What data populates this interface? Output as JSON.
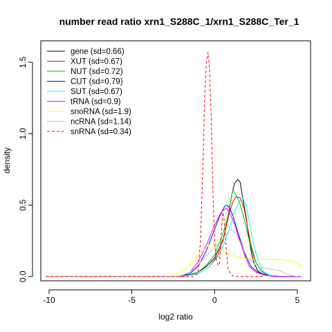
{
  "chart_data": {
    "type": "line",
    "title": "number read ratio xrn1_S288C_1/xrn1_S288C_Ter_1",
    "xlabel": "log2 ratio",
    "ylabel": "density",
    "xlim": [
      -10.5,
      5.8
    ],
    "ylim": [
      -0.03,
      1.65
    ],
    "xticks": [
      -10,
      -5,
      0,
      5
    ],
    "xtick_labels": [
      "-10",
      "-5",
      "0",
      "5"
    ],
    "yticks": [
      0.0,
      0.5,
      1.0,
      1.5
    ],
    "ytick_labels": [
      "0.0",
      "0.5",
      "1.0",
      "1.5"
    ],
    "grid": false,
    "legend_position": "top-left",
    "series": [
      {
        "name": "gene (sd=0.66)",
        "color": "#000000",
        "dash": "solid",
        "points": [
          [
            -10.2,
            0
          ],
          [
            -2.2,
            0
          ],
          [
            -1.5,
            0.01
          ],
          [
            -1.0,
            0.03
          ],
          [
            -0.5,
            0.07
          ],
          [
            0.0,
            0.13
          ],
          [
            0.5,
            0.25
          ],
          [
            0.8,
            0.4
          ],
          [
            1.0,
            0.55
          ],
          [
            1.2,
            0.65
          ],
          [
            1.4,
            0.68
          ],
          [
            1.55,
            0.66
          ],
          [
            1.7,
            0.55
          ],
          [
            1.9,
            0.42
          ],
          [
            2.1,
            0.25
          ],
          [
            2.3,
            0.12
          ],
          [
            2.6,
            0.04
          ],
          [
            3.0,
            0.01
          ],
          [
            3.6,
            0
          ],
          [
            5.2,
            0
          ]
        ]
      },
      {
        "name": "XUT (sd=0.67)",
        "color": "#ff0000",
        "dash": "solid",
        "points": [
          [
            -10.2,
            0
          ],
          [
            -2.0,
            0
          ],
          [
            -1.0,
            0.02
          ],
          [
            -0.3,
            0.07
          ],
          [
            0.2,
            0.15
          ],
          [
            0.6,
            0.3
          ],
          [
            0.9,
            0.45
          ],
          [
            1.1,
            0.52
          ],
          [
            1.3,
            0.56
          ],
          [
            1.55,
            0.55
          ],
          [
            1.8,
            0.47
          ],
          [
            2.0,
            0.34
          ],
          [
            2.2,
            0.22
          ],
          [
            2.5,
            0.1
          ],
          [
            2.8,
            0.04
          ],
          [
            3.2,
            0.01
          ],
          [
            3.8,
            0
          ],
          [
            5.2,
            0
          ]
        ]
      },
      {
        "name": "NUT (sd=0.72)",
        "color": "#00c000",
        "dash": "solid",
        "points": [
          [
            -10.2,
            0
          ],
          [
            -2.0,
            0
          ],
          [
            -1.0,
            0.03
          ],
          [
            -0.5,
            0.08
          ],
          [
            0.0,
            0.15
          ],
          [
            0.5,
            0.3
          ],
          [
            0.8,
            0.42
          ],
          [
            1.0,
            0.55
          ],
          [
            1.1,
            0.6
          ],
          [
            1.25,
            0.58
          ],
          [
            1.5,
            0.52
          ],
          [
            1.8,
            0.4
          ],
          [
            2.1,
            0.25
          ],
          [
            2.4,
            0.12
          ],
          [
            2.8,
            0.04
          ],
          [
            3.2,
            0.01
          ],
          [
            3.8,
            0
          ],
          [
            5.2,
            0
          ]
        ]
      },
      {
        "name": "CUT (sd=0.79)",
        "color": "#0000ff",
        "dash": "solid",
        "points": [
          [
            -10.2,
            0
          ],
          [
            -2.0,
            0
          ],
          [
            -1.5,
            0.02
          ],
          [
            -1.0,
            0.07
          ],
          [
            -0.5,
            0.18
          ],
          [
            0.0,
            0.33
          ],
          [
            0.3,
            0.42
          ],
          [
            0.6,
            0.49
          ],
          [
            0.75,
            0.5
          ],
          [
            0.9,
            0.48
          ],
          [
            1.1,
            0.43
          ],
          [
            1.3,
            0.35
          ],
          [
            1.6,
            0.24
          ],
          [
            1.9,
            0.14
          ],
          [
            2.2,
            0.07
          ],
          [
            2.6,
            0.03
          ],
          [
            3.2,
            0.01
          ],
          [
            4.0,
            0
          ],
          [
            5.2,
            0
          ]
        ]
      },
      {
        "name": "SUT (sd=0.67)",
        "color": "#00ffff",
        "dash": "solid",
        "points": [
          [
            -10.2,
            0
          ],
          [
            -2.0,
            0
          ],
          [
            -1.0,
            0.02
          ],
          [
            -0.3,
            0.07
          ],
          [
            0.3,
            0.15
          ],
          [
            0.8,
            0.3
          ],
          [
            1.2,
            0.45
          ],
          [
            1.5,
            0.53
          ],
          [
            1.7,
            0.55
          ],
          [
            1.9,
            0.5
          ],
          [
            2.1,
            0.38
          ],
          [
            2.3,
            0.25
          ],
          [
            2.6,
            0.12
          ],
          [
            2.9,
            0.04
          ],
          [
            3.3,
            0.01
          ],
          [
            3.8,
            0
          ],
          [
            5.2,
            0
          ]
        ]
      },
      {
        "name": "tRNA (sd=0.9)",
        "color": "#ff00ff",
        "dash": "solid",
        "points": [
          [
            -10.2,
            0
          ],
          [
            -2.0,
            0
          ],
          [
            -1.5,
            0.03
          ],
          [
            -1.0,
            0.1
          ],
          [
            -0.5,
            0.22
          ],
          [
            0.0,
            0.36
          ],
          [
            0.4,
            0.45
          ],
          [
            0.7,
            0.48
          ],
          [
            0.9,
            0.45
          ],
          [
            1.2,
            0.37
          ],
          [
            1.5,
            0.26
          ],
          [
            1.8,
            0.15
          ],
          [
            2.1,
            0.07
          ],
          [
            2.5,
            0.03
          ],
          [
            3.0,
            0.01
          ],
          [
            3.6,
            0
          ],
          [
            5.2,
            0
          ]
        ]
      },
      {
        "name": "snoRNA (sd=1.9)",
        "color": "#ffff00",
        "dash": "solid",
        "points": [
          [
            -10.2,
            0
          ],
          [
            -2.8,
            0
          ],
          [
            -2.0,
            0.03
          ],
          [
            -1.5,
            0.08
          ],
          [
            -1.0,
            0.15
          ],
          [
            -0.5,
            0.2
          ],
          [
            -0.2,
            0.24
          ],
          [
            0.1,
            0.21
          ],
          [
            0.6,
            0.17
          ],
          [
            1.0,
            0.15
          ],
          [
            1.6,
            0.13
          ],
          [
            2.2,
            0.12
          ],
          [
            3.0,
            0.12
          ],
          [
            4.0,
            0.12
          ],
          [
            4.6,
            0.11
          ],
          [
            5.0,
            0.09
          ],
          [
            5.3,
            0.06
          ]
        ]
      },
      {
        "name": "ncRNA (sd=1.14)",
        "color": "#bebebe",
        "dash": "solid",
        "points": [
          [
            -10.2,
            0
          ],
          [
            -2.2,
            0
          ],
          [
            -1.5,
            0.03
          ],
          [
            -1.0,
            0.08
          ],
          [
            -0.5,
            0.15
          ],
          [
            0.0,
            0.2
          ],
          [
            0.4,
            0.25
          ],
          [
            0.8,
            0.31
          ],
          [
            1.0,
            0.33
          ],
          [
            1.3,
            0.3
          ],
          [
            1.7,
            0.2
          ],
          [
            2.0,
            0.13
          ],
          [
            2.5,
            0.08
          ],
          [
            3.0,
            0.06
          ],
          [
            3.5,
            0.05
          ],
          [
            4.0,
            0.04
          ],
          [
            4.3,
            0.02
          ],
          [
            4.6,
            0.01
          ],
          [
            5.0,
            0
          ]
        ]
      },
      {
        "name": "snRNA (sd=0.34)",
        "color": "#ff0000",
        "dash": "dashed",
        "points": [
          [
            -10.2,
            0
          ],
          [
            -1.3,
            0
          ],
          [
            -1.0,
            0.02
          ],
          [
            -0.85,
            0.25
          ],
          [
            -0.7,
            0.8
          ],
          [
            -0.6,
            1.25
          ],
          [
            -0.5,
            1.5
          ],
          [
            -0.4,
            1.57
          ],
          [
            -0.3,
            1.45
          ],
          [
            -0.2,
            1.1
          ],
          [
            -0.1,
            0.6
          ],
          [
            0.0,
            0.26
          ],
          [
            0.1,
            0.12
          ],
          [
            0.2,
            0.08
          ],
          [
            0.3,
            0.08
          ],
          [
            0.4,
            0.3
          ],
          [
            0.5,
            0.45
          ],
          [
            0.6,
            0.38
          ],
          [
            0.7,
            0.2
          ],
          [
            0.8,
            0.06
          ],
          [
            1.0,
            0.01
          ],
          [
            1.2,
            0
          ],
          [
            3.0,
            0
          ]
        ]
      }
    ]
  }
}
